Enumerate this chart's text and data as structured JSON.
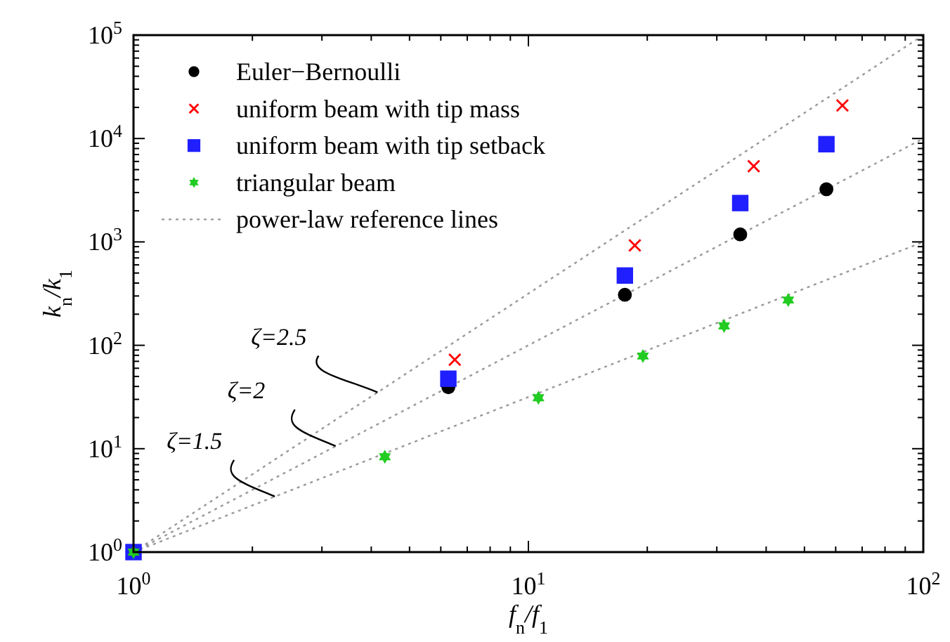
{
  "chart_data": {
    "type": "scatter",
    "xlabel": "f$_{n}$/f$_{1}$",
    "ylabel": "k$_{n}$/k$_{1}$",
    "log": "xy",
    "xlim": [
      1,
      100
    ],
    "ylim": [
      1,
      100000
    ],
    "xticks": [
      {
        "value": 1,
        "label": "10$^{0}$"
      },
      {
        "value": 10,
        "label": "10$^{1}$"
      },
      {
        "value": 100,
        "label": "10$^{2}$"
      }
    ],
    "yticks": [
      {
        "value": 1,
        "label": "10$^{0}$"
      },
      {
        "value": 10,
        "label": "10$^{1}$"
      },
      {
        "value": 100,
        "label": "10$^{2}$"
      },
      {
        "value": 1000,
        "label": "10$^{3}$"
      },
      {
        "value": 10000,
        "label": "10$^{4}$"
      },
      {
        "value": 100000,
        "label": "10$^{5}$"
      }
    ],
    "grid": false,
    "legend": "top left",
    "series": [
      {
        "name": "Euler−Bernoulli",
        "color": "#000000",
        "marker": "circle",
        "x": [
          6.27,
          17.55,
          34.39,
          56.84
        ],
        "values": [
          39.3,
          308,
          1183,
          3231
        ]
      },
      {
        "name": "uniform beam with tip mass",
        "color": "#ff0000",
        "marker": "cross",
        "x": [
          6.51,
          18.6,
          37.2,
          62.4
        ],
        "values": [
          72.6,
          925,
          5400,
          20900
        ]
      },
      {
        "name": "uniform beam with tip setback",
        "color": "#1f1fff",
        "marker": "square",
        "x": [
          1,
          6.27,
          17.55,
          34.39,
          56.84
        ],
        "values": [
          1,
          47.5,
          473,
          2375,
          8810
        ]
      },
      {
        "name": "triangular beam",
        "color": "#22cc22",
        "marker": "star",
        "x": [
          1,
          4.33,
          10.6,
          19.5,
          31.3,
          45.5
        ],
        "values": [
          1,
          8.36,
          31.1,
          78.7,
          154,
          274
        ]
      },
      {
        "name": "power-law reference lines",
        "type": "line",
        "color": "#999999",
        "line_style": "dotted",
        "x": [
          1,
          100
        ],
        "values": [
          1,
          1000
        ]
      },
      {
        "type": "line",
        "color": "#999999",
        "line_style": "dotted",
        "x": [
          1,
          100
        ],
        "values": [
          1,
          10000
        ]
      },
      {
        "type": "line",
        "color": "#999999",
        "line_style": "dotted",
        "x": [
          1,
          100
        ],
        "values": [
          1,
          100000
        ]
      }
    ],
    "annotations": [
      {
        "text": "ζ=2.5",
        "x": 4.15,
        "y": 35.1
      },
      {
        "text": "ζ=2",
        "x": 3.25,
        "y": 10.6
      },
      {
        "text": "ζ=1.5",
        "x": 2.28,
        "y": 3.45
      }
    ]
  }
}
